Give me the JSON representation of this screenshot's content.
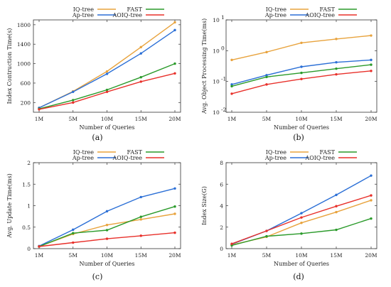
{
  "colors": {
    "IQ-tree": "#e8a33d",
    "Ap-tree": "#2b6fd6",
    "FAST": "#2a9a2a",
    "AOIQ-tree": "#e8302a"
  },
  "chart_data": [
    {
      "type": "line",
      "caption": "(a)",
      "xlabel": "Number of Queries",
      "ylabel": "Index Contruction Time(s)",
      "categories": [
        "1M",
        "5M",
        "10M",
        "15M",
        "20M"
      ],
      "ylim": [
        0,
        1900
      ],
      "yticks": [
        200,
        600,
        1000,
        1400,
        1800
      ],
      "yscale": "linear",
      "grid": false,
      "legend": "top, two columns",
      "series": [
        {
          "name": "IQ-tree",
          "values": [
            90,
            430,
            840,
            1340,
            1850
          ]
        },
        {
          "name": "Ap-tree",
          "values": [
            90,
            420,
            790,
            1210,
            1690
          ]
        },
        {
          "name": "FAST",
          "values": [
            70,
            250,
            460,
            720,
            1000
          ]
        },
        {
          "name": "AOIQ-tree",
          "values": [
            60,
            200,
            420,
            630,
            800
          ]
        }
      ]
    },
    {
      "type": "line",
      "caption": "(b)",
      "xlabel": "Number of Queries",
      "ylabel": "Avg. Object Processing Time(ms)",
      "categories": [
        "1M",
        "5M",
        "10M",
        "15M",
        "20M"
      ],
      "ylim": [
        0.01,
        10
      ],
      "yticks": [
        "10^-2",
        "10^-1",
        "10^0",
        "10^1"
      ],
      "yscale": "log",
      "grid": false,
      "legend": "top, two columns",
      "series": [
        {
          "name": "IQ-tree",
          "values": [
            0.5,
            0.9,
            1.8,
            2.4,
            3.1
          ]
        },
        {
          "name": "Ap-tree",
          "values": [
            0.08,
            0.16,
            0.3,
            0.42,
            0.5
          ]
        },
        {
          "name": "FAST",
          "values": [
            0.07,
            0.14,
            0.19,
            0.26,
            0.35
          ]
        },
        {
          "name": "AOIQ-tree",
          "values": [
            0.04,
            0.08,
            0.12,
            0.17,
            0.22
          ]
        }
      ]
    },
    {
      "type": "line",
      "caption": "(c)",
      "xlabel": "Number of Queries",
      "ylabel": "Avg. Update Time(ms)",
      "categories": [
        "1M",
        "5M",
        "10M",
        "15M",
        "20M"
      ],
      "ylim": [
        0,
        2
      ],
      "yticks": [
        "0",
        "0.5",
        "1",
        "1.5",
        "2"
      ],
      "yscale": "linear",
      "grid": false,
      "legend": "top, two columns",
      "series": [
        {
          "name": "IQ-tree",
          "values": [
            0.05,
            0.34,
            0.55,
            0.68,
            0.81
          ]
        },
        {
          "name": "Ap-tree",
          "values": [
            0.06,
            0.44,
            0.87,
            1.2,
            1.4
          ]
        },
        {
          "name": "FAST",
          "values": [
            0.05,
            0.36,
            0.43,
            0.74,
            0.98
          ]
        },
        {
          "name": "AOIQ-tree",
          "values": [
            0.05,
            0.14,
            0.23,
            0.3,
            0.37
          ]
        }
      ]
    },
    {
      "type": "line",
      "caption": "(d)",
      "xlabel": "Number of Queries",
      "ylabel": "Index Size(G)",
      "categories": [
        "1M",
        "5M",
        "10M",
        "15M",
        "20M"
      ],
      "ylim": [
        0,
        8
      ],
      "yticks": [
        "0",
        "2",
        "4",
        "6",
        "8"
      ],
      "yscale": "linear",
      "grid": false,
      "legend": "top, two columns",
      "series": [
        {
          "name": "IQ-tree",
          "values": [
            0.35,
            1.1,
            2.4,
            3.4,
            4.5
          ]
        },
        {
          "name": "Ap-tree",
          "values": [
            0.4,
            1.65,
            3.3,
            5.0,
            6.8
          ]
        },
        {
          "name": "FAST",
          "values": [
            0.3,
            1.15,
            1.4,
            1.75,
            2.8
          ]
        },
        {
          "name": "AOIQ-tree",
          "values": [
            0.45,
            1.65,
            2.9,
            3.95,
            4.95
          ]
        }
      ]
    }
  ]
}
